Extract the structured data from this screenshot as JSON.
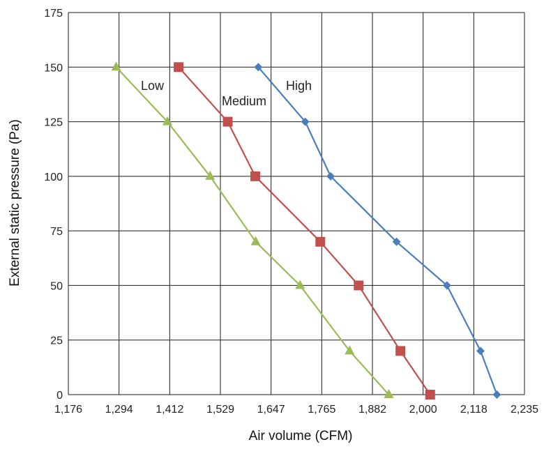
{
  "chart_data": {
    "type": "line",
    "title": "",
    "xlabel": "Air volume (CFM)",
    "ylabel": "External static pressure (Pa)",
    "xlim": [
      1176,
      2235
    ],
    "ylim": [
      0,
      175
    ],
    "x_ticks": [
      "1,176",
      "1,294",
      "1,412",
      "1,529",
      "1,647",
      "1,765",
      "1,882",
      "2,000",
      "2,118",
      "2,235"
    ],
    "y_ticks": [
      "0",
      "25",
      "50",
      "75",
      "100",
      "125",
      "150",
      "175"
    ],
    "grid": true,
    "legend": "none",
    "series": [
      {
        "name": "High",
        "color": "#4a7ebb",
        "marker": "diamond",
        "points": [
          {
            "x": 1617,
            "y": 150
          },
          {
            "x": 1726,
            "y": 125
          },
          {
            "x": 1785,
            "y": 100
          },
          {
            "x": 1938,
            "y": 70
          },
          {
            "x": 2055,
            "y": 50
          },
          {
            "x": 2133,
            "y": 20
          },
          {
            "x": 2171,
            "y": 0
          }
        ]
      },
      {
        "name": "Medium",
        "color": "#c0504d",
        "marker": "square",
        "points": [
          {
            "x": 1432,
            "y": 150
          },
          {
            "x": 1546,
            "y": 125
          },
          {
            "x": 1610,
            "y": 100
          },
          {
            "x": 1761,
            "y": 70
          },
          {
            "x": 1850,
            "y": 50
          },
          {
            "x": 1947,
            "y": 20
          },
          {
            "x": 2016,
            "y": 0
          }
        ]
      },
      {
        "name": "Low",
        "color": "#9bbb59",
        "marker": "triangle",
        "points": [
          {
            "x": 1287,
            "y": 150
          },
          {
            "x": 1406,
            "y": 125
          },
          {
            "x": 1505,
            "y": 100
          },
          {
            "x": 1611,
            "y": 70
          },
          {
            "x": 1714,
            "y": 50
          },
          {
            "x": 1829,
            "y": 20
          },
          {
            "x": 1920,
            "y": 0
          }
        ]
      }
    ]
  }
}
